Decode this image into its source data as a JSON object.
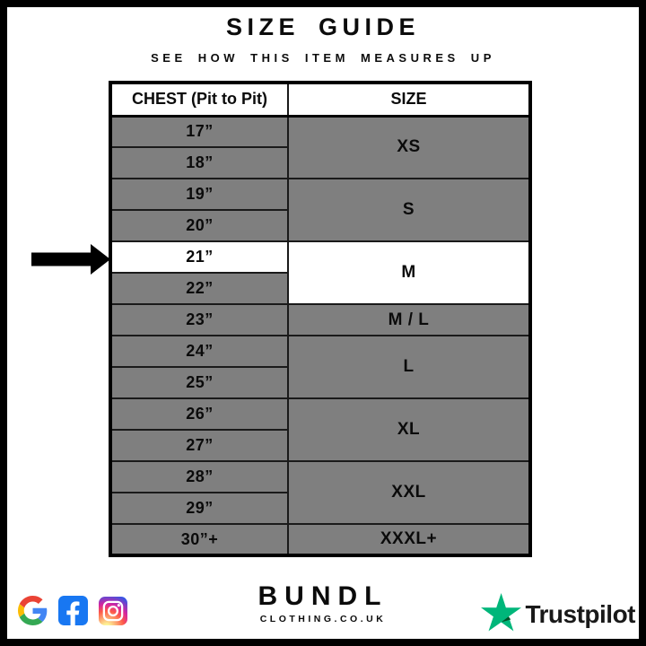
{
  "header": {
    "title": "SIZE GUIDE",
    "subtitle": "SEE HOW THIS ITEM MEASURES UP"
  },
  "table": {
    "columns": [
      "CHEST (Pit to Pit)",
      "SIZE"
    ],
    "groups": [
      {
        "size": "XS",
        "chests": [
          "17”",
          "18”"
        ]
      },
      {
        "size": "S",
        "chests": [
          "19”",
          "20”"
        ]
      },
      {
        "size": "M",
        "chests": [
          "21”",
          "22”"
        ],
        "highlighted": true,
        "highlighted_chest": "21”"
      },
      {
        "size": "M / L",
        "chests": [
          "23”"
        ]
      },
      {
        "size": "L",
        "chests": [
          "24”",
          "25”"
        ]
      },
      {
        "size": "XL",
        "chests": [
          "26”",
          "27”"
        ]
      },
      {
        "size": "XXL",
        "chests": [
          "28”",
          "29”"
        ]
      },
      {
        "size": "XXXL+",
        "chests": [
          "30”+"
        ]
      }
    ]
  },
  "annotation": {
    "arrow_points_to": "21” / M"
  },
  "footer": {
    "social_icons": [
      "google-icon",
      "facebook-icon",
      "instagram-icon"
    ],
    "brand": {
      "name": "BUNDL",
      "tagline": "CLOTHING.CO.UK"
    },
    "trustpilot": {
      "label": "Trustpilot"
    }
  },
  "colors": {
    "cell_gray": "#7f7f7f",
    "highlight_white": "#ffffff",
    "border_black": "#000000",
    "trustpilot_green": "#00b67a",
    "trustpilot_shadow": "#005128",
    "facebook_blue": "#1877f2"
  },
  "chart_data": {
    "type": "table",
    "title": "SIZE GUIDE",
    "subtitle": "SEE HOW THIS ITEM MEASURES UP",
    "columns": [
      "CHEST (Pit to Pit)",
      "SIZE"
    ],
    "rows": [
      [
        "17”",
        "XS"
      ],
      [
        "18”",
        "XS"
      ],
      [
        "19”",
        "S"
      ],
      [
        "20”",
        "S"
      ],
      [
        "21”",
        "M"
      ],
      [
        "22”",
        "M"
      ],
      [
        "23”",
        "M / L"
      ],
      [
        "24”",
        "L"
      ],
      [
        "25”",
        "L"
      ],
      [
        "26”",
        "XL"
      ],
      [
        "27”",
        "XL"
      ],
      [
        "28”",
        "XXL"
      ],
      [
        "29”",
        "XXL"
      ],
      [
        "30”+",
        "XXXL+"
      ]
    ],
    "highlighted_row": [
      "21”",
      "M"
    ],
    "layout_hints": {
      "merged_size_cells": true,
      "highlight_marker": "left-pointing-arrow at 21” row"
    }
  }
}
